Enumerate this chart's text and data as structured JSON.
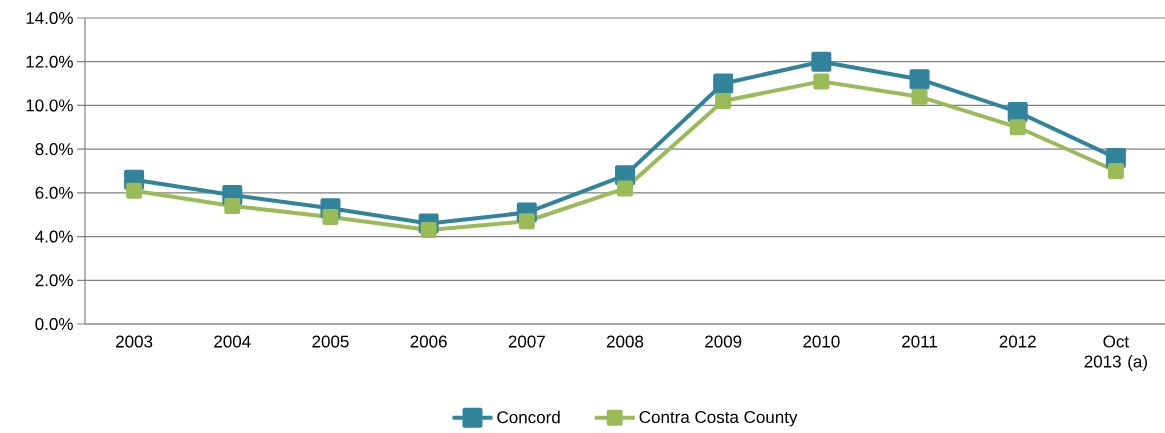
{
  "chart_data": {
    "type": "line",
    "categories": [
      "2003",
      "2004",
      "2005",
      "2006",
      "2007",
      "2008",
      "2009",
      "2010",
      "2011",
      "2012",
      "Oct 2013 (a)"
    ],
    "series": [
      {
        "name": "Concord",
        "color": "#31849b",
        "values": [
          6.6,
          5.9,
          5.3,
          4.6,
          5.1,
          6.8,
          11.0,
          12.0,
          11.2,
          9.7,
          7.6
        ]
      },
      {
        "name": "Contra Costa County",
        "color": "#9bbb59",
        "values": [
          6.1,
          5.4,
          4.9,
          4.3,
          4.7,
          6.2,
          10.2,
          11.1,
          10.4,
          9.0,
          7.0
        ]
      }
    ],
    "ylim": [
      0,
      14
    ],
    "yticks": [
      {
        "value": 0,
        "label": "0.0%"
      },
      {
        "value": 2,
        "label": "2.0%"
      },
      {
        "value": 4,
        "label": "4.0%"
      },
      {
        "value": 6,
        "label": "6.0%"
      },
      {
        "value": 8,
        "label": "8.0%"
      },
      {
        "value": 10,
        "label": "10.0%"
      },
      {
        "value": 12,
        "label": "12.0%"
      },
      {
        "value": 14,
        "label": "14.0%"
      }
    ],
    "grid": "y",
    "legend": "bottom",
    "marker": "square",
    "line_style": "solid"
  }
}
